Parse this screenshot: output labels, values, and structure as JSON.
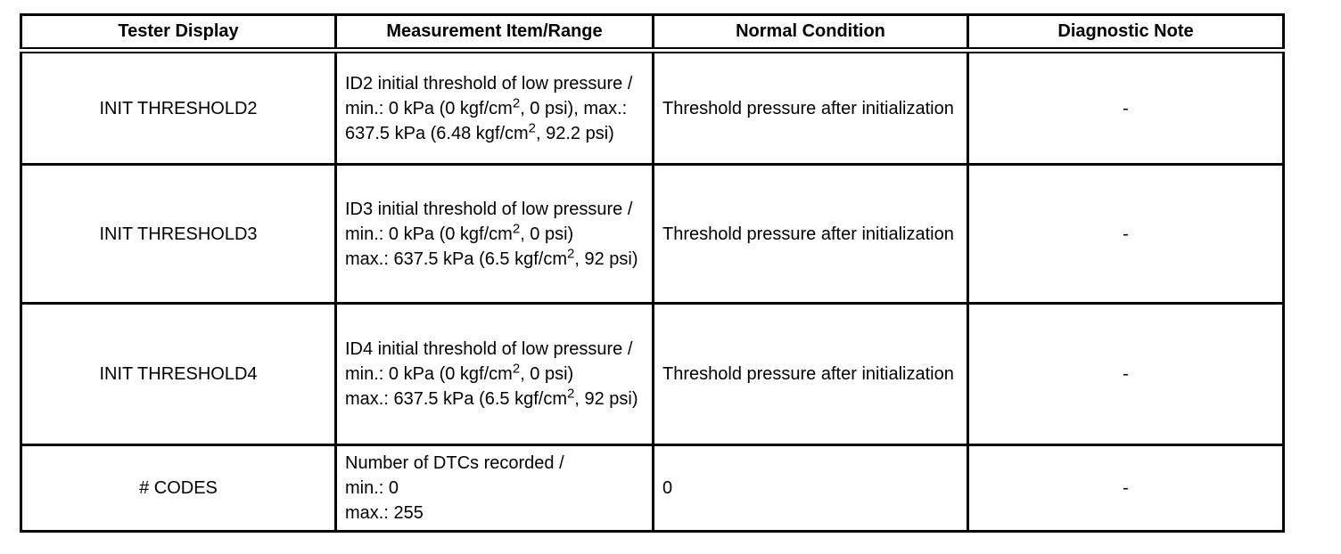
{
  "table": {
    "columns": [
      "Tester Display",
      "Measurement Item/Range",
      "Normal Condition",
      "Diagnostic Note"
    ],
    "rows": [
      {
        "tester_display": "INIT THRESHOLD2",
        "measurement_lines": [
          "ID2 initial threshold of low pressure / min.: 0 kPa (0 kgf/cm², 0 psi), max.: 637.5 kPa (6.48 kgf/cm², 92.2 psi)"
        ],
        "normal_condition": "Threshold pressure after initialization",
        "diagnostic_note": "-"
      },
      {
        "tester_display": "INIT THRESHOLD3",
        "measurement_lines": [
          "ID3 initial threshold of low pressure /",
          "min.: 0 kPa (0 kgf/cm², 0 psi)",
          "max.: 637.5 kPa (6.5 kgf/cm², 92 psi)"
        ],
        "normal_condition": "Threshold pressure after initialization",
        "diagnostic_note": "-"
      },
      {
        "tester_display": "INIT THRESHOLD4",
        "measurement_lines": [
          "ID4 initial threshold of low pressure /",
          "min.: 0 kPa (0 kgf/cm², 0 psi)",
          "max.: 637.5 kPa (6.5 kgf/cm², 92 psi)"
        ],
        "normal_condition": "Threshold pressure after initialization",
        "diagnostic_note": "-"
      },
      {
        "tester_display": "# CODES",
        "measurement_lines": [
          "Number of DTCs recorded /",
          "min.: 0",
          "max.: 255"
        ],
        "normal_condition": "0",
        "diagnostic_note": "-"
      }
    ],
    "colors": {
      "border": "#000000",
      "text": "#000000",
      "background": "#ffffff"
    }
  }
}
